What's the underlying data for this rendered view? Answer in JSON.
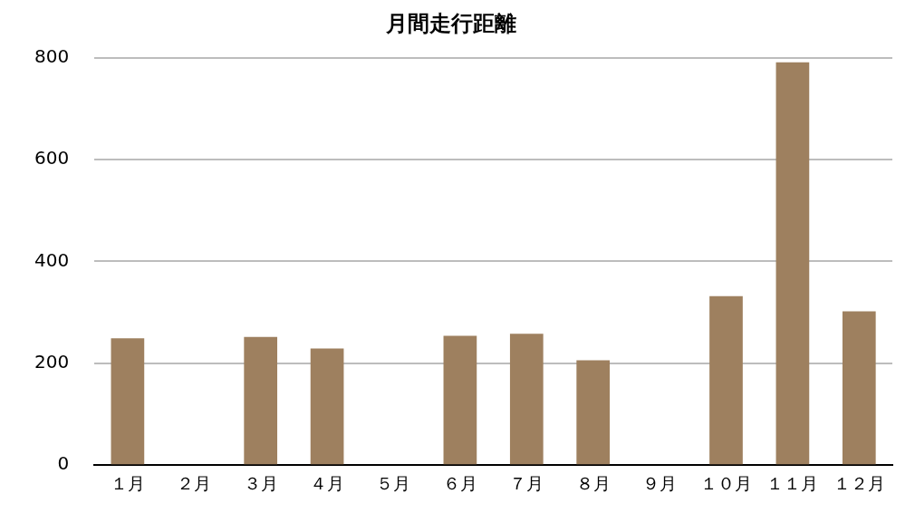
{
  "chart_data": {
    "type": "bar",
    "title": "月間走行距離",
    "categories": [
      "１月",
      "２月",
      "３月",
      "４月",
      "５月",
      "６月",
      "７月",
      "８月",
      "９月",
      "１０月",
      "１１月",
      "１２月"
    ],
    "values": [
      249,
      0,
      252,
      229,
      0,
      254,
      258,
      206,
      0,
      332,
      791,
      302
    ],
    "color": "#9e805f",
    "ylim": [
      0,
      800
    ],
    "yticks": [
      0,
      200,
      400,
      600,
      800
    ],
    "grid": "y"
  }
}
